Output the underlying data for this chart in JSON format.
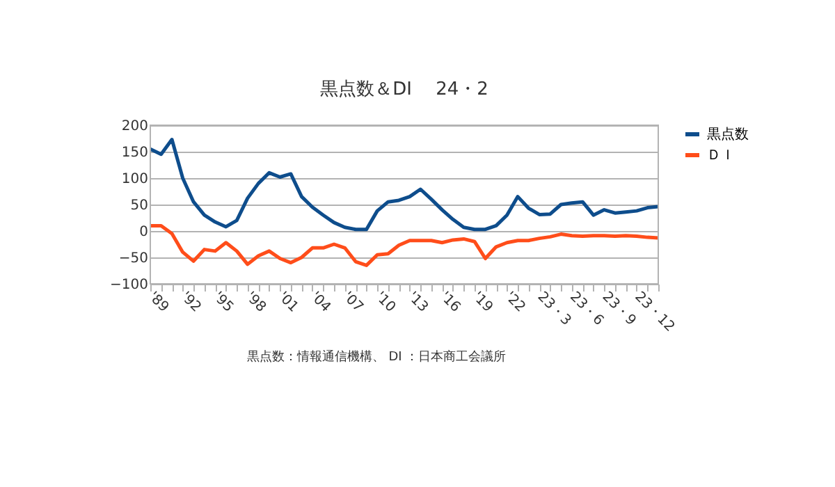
{
  "chart_data": {
    "type": "line",
    "title": "黒点数＆DI　 24・2",
    "categories": [
      "'89",
      null,
      null,
      "'92",
      null,
      null,
      "'95",
      null,
      null,
      "'98",
      null,
      null,
      "'01",
      null,
      null,
      "'04",
      null,
      null,
      "'07",
      null,
      null,
      "'10",
      null,
      null,
      "'13",
      null,
      null,
      "'16",
      null,
      null,
      "'19",
      null,
      null,
      "'22",
      null,
      null,
      "23・3",
      null,
      null,
      "23・6",
      null,
      null,
      "23・9",
      null,
      null,
      "23・12",
      null,
      null
    ],
    "series": [
      {
        "name": "黒点数",
        "color": "#0e4d8c",
        "values": [
          155,
          145,
          173,
          100,
          55,
          30,
          17,
          8,
          20,
          62,
          90,
          110,
          102,
          108,
          65,
          45,
          30,
          16,
          7,
          3,
          3,
          38,
          55,
          58,
          65,
          79,
          60,
          40,
          22,
          7,
          3,
          3,
          10,
          30,
          65,
          43,
          31,
          32,
          50,
          53,
          55,
          30,
          40,
          34,
          36,
          38,
          44,
          46
        ]
      },
      {
        "name": "ＤＩ",
        "color": "#ff4d1a",
        "values": [
          10,
          10,
          -5,
          -40,
          -57,
          -35,
          -38,
          -22,
          -38,
          -63,
          -47,
          -38,
          -52,
          -60,
          -50,
          -32,
          -32,
          -25,
          -32,
          -58,
          -65,
          -45,
          -43,
          -27,
          -18,
          -18,
          -18,
          -22,
          -17,
          -15,
          -20,
          -52,
          -30,
          -22,
          -18,
          -18,
          -14,
          -11,
          -6,
          -9,
          -10,
          -9,
          -9,
          -10,
          -9,
          -10,
          -12,
          -13
        ]
      }
    ],
    "ylim": [
      -100,
      200
    ],
    "yticks": [
      -100,
      -50,
      0,
      50,
      100,
      150,
      200
    ],
    "grid": "y",
    "legend": "right",
    "annotations": [
      "黒点数：情報通信機構、 DI ：日本商工会議所"
    ]
  }
}
